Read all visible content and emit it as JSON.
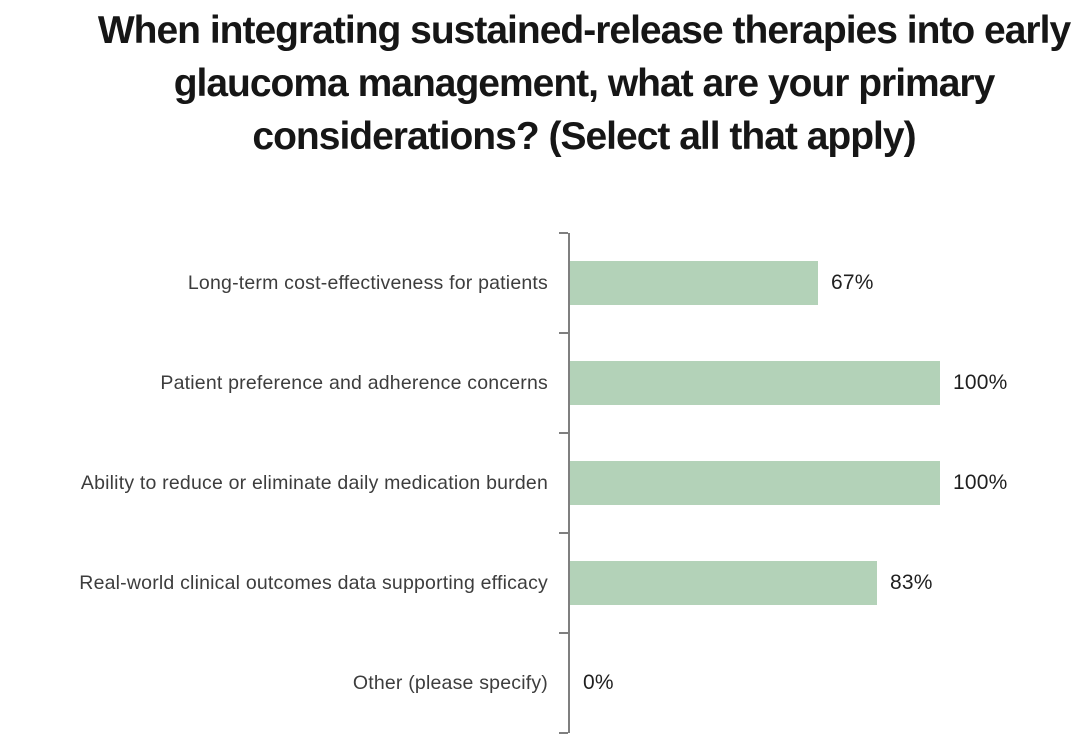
{
  "chart_data": {
    "type": "bar",
    "orientation": "horizontal",
    "title": "When integrating sustained-release therapies into early glaucoma management, what are your primary considerations? (Select all that apply)",
    "categories": [
      "Long-term cost-effectiveness for patients",
      "Patient preference and adherence concerns",
      "Ability to reduce or eliminate daily medication burden",
      "Real-world clinical outcomes data supporting efficacy",
      "Other (please specify)"
    ],
    "values": [
      67,
      100,
      100,
      83,
      0
    ],
    "value_labels": [
      "67%",
      "100%",
      "100%",
      "83%",
      "0%"
    ],
    "xlabel": "",
    "ylabel": "",
    "xlim": [
      0,
      100
    ],
    "grid": false,
    "legend": "none",
    "data_labels": true,
    "bar_color": "#b3d2b8",
    "axis_color": "#7f7f7f",
    "title_color": "#161616",
    "label_color": "#3d3d3d"
  }
}
